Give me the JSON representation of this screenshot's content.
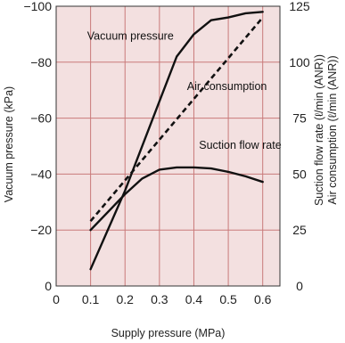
{
  "chart_data": {
    "type": "line",
    "x_axis": {
      "label": "Supply pressure (MPa)",
      "range": [
        0,
        0.65
      ],
      "ticks": [
        0,
        0.1,
        0.2,
        0.3,
        0.4,
        0.5,
        0.6
      ],
      "tick_labels": [
        "0",
        "0.1",
        "0.2",
        "0.3",
        "0.4",
        "0.5",
        "0.6"
      ]
    },
    "y_left_axis": {
      "label": "Vacuum pressure (kPa)",
      "range": [
        0,
        -100
      ],
      "ticks": [
        0,
        -20,
        -40,
        -60,
        -80,
        -100
      ],
      "tick_labels": [
        "0",
        "−20",
        "−40",
        "−60",
        "−80",
        "−100"
      ]
    },
    "y_right_axis": {
      "label_line1": "Suction flow rate (ℓ/min (ANR))",
      "label_line2": "Air consumption (ℓ/min (ANR))",
      "range": [
        0,
        125
      ],
      "ticks": [
        0,
        25,
        50,
        75,
        100,
        125
      ],
      "tick_labels": [
        "0",
        "25",
        "50",
        "75",
        "100",
        "125"
      ]
    },
    "grid": true,
    "background_color": "#f3e0e0",
    "grid_color": "#c97a7a",
    "line_color": "#111111",
    "series": [
      {
        "name": "Vacuum pressure",
        "axis": "left",
        "style": "solid",
        "x": [
          0.1,
          0.2,
          0.3,
          0.35,
          0.4,
          0.45,
          0.5,
          0.55,
          0.6
        ],
        "y": [
          -6,
          -34,
          -66,
          -82,
          -90,
          -95,
          -96,
          -97.5,
          -98
        ]
      },
      {
        "name": "Air consumption",
        "axis": "right",
        "style": "dashed",
        "x": [
          0.1,
          0.6
        ],
        "y": [
          29,
          120
        ]
      },
      {
        "name": "Suction flow rate",
        "axis": "right",
        "style": "solid",
        "x": [
          0.1,
          0.2,
          0.25,
          0.3,
          0.35,
          0.4,
          0.45,
          0.5,
          0.55,
          0.6
        ],
        "y": [
          25,
          41,
          48,
          52,
          53,
          53,
          52.5,
          51,
          49,
          46.5
        ]
      }
    ],
    "annotations": [
      {
        "text": "Vacuum pressure",
        "x": 0.09,
        "y_axis": "left",
        "y": -88
      },
      {
        "text": "Air consumption",
        "x": 0.38,
        "y_axis": "left",
        "y": -70
      },
      {
        "text": "Suction flow rate",
        "x": 0.415,
        "y_axis": "left",
        "y": -49
      }
    ]
  }
}
